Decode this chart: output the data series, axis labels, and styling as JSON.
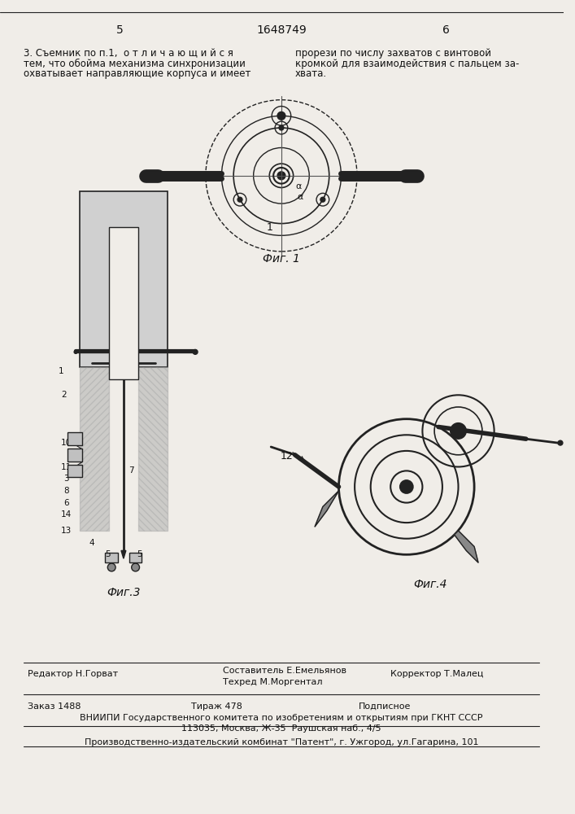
{
  "bg_color": "#f0ede8",
  "page_number_left": "5",
  "page_number_center": "1648749",
  "page_number_right": "6",
  "text_col1_line1": "3. Съемник по п.1,  о т л и ч а ю щ и й с я",
  "text_col1_line2": "тем, что обойма механизма синхронизации",
  "text_col1_line3": "охватывает направляющие корпуса и имеет",
  "text_col2_line1": "прорези по числу захватов с винтовой",
  "text_col2_line2": "кромкой для взаимодействия с пальцем за-",
  "text_col2_line3": "хвата.",
  "fig1_label": "Фиг. 1",
  "fig3_label": "Фиг.3",
  "fig4_label": "Фиг.4",
  "footer_editor": "Редактор Н.Горват",
  "footer_composer": "Составитель Е.Емельянов",
  "footer_techred": "Техред М.Моргентал",
  "footer_corrector": "Корректор Т.Малец",
  "footer_order": "Заказ 1488",
  "footer_print": "Тираж 478",
  "footer_subscrip": "Подписное",
  "footer_vniip": "ВНИИПИ Государственного комитета по изобретениям и открытиям при ГКНТ СССР",
  "footer_address": "113035, Москва, Ж-35  Раушская наб., 4/5",
  "footer_producer": "Производственно-издательский комбинат \"Патент\", г. Ужгород, ул.Гагарина, 101",
  "line_color": "#222222",
  "text_color": "#111111"
}
